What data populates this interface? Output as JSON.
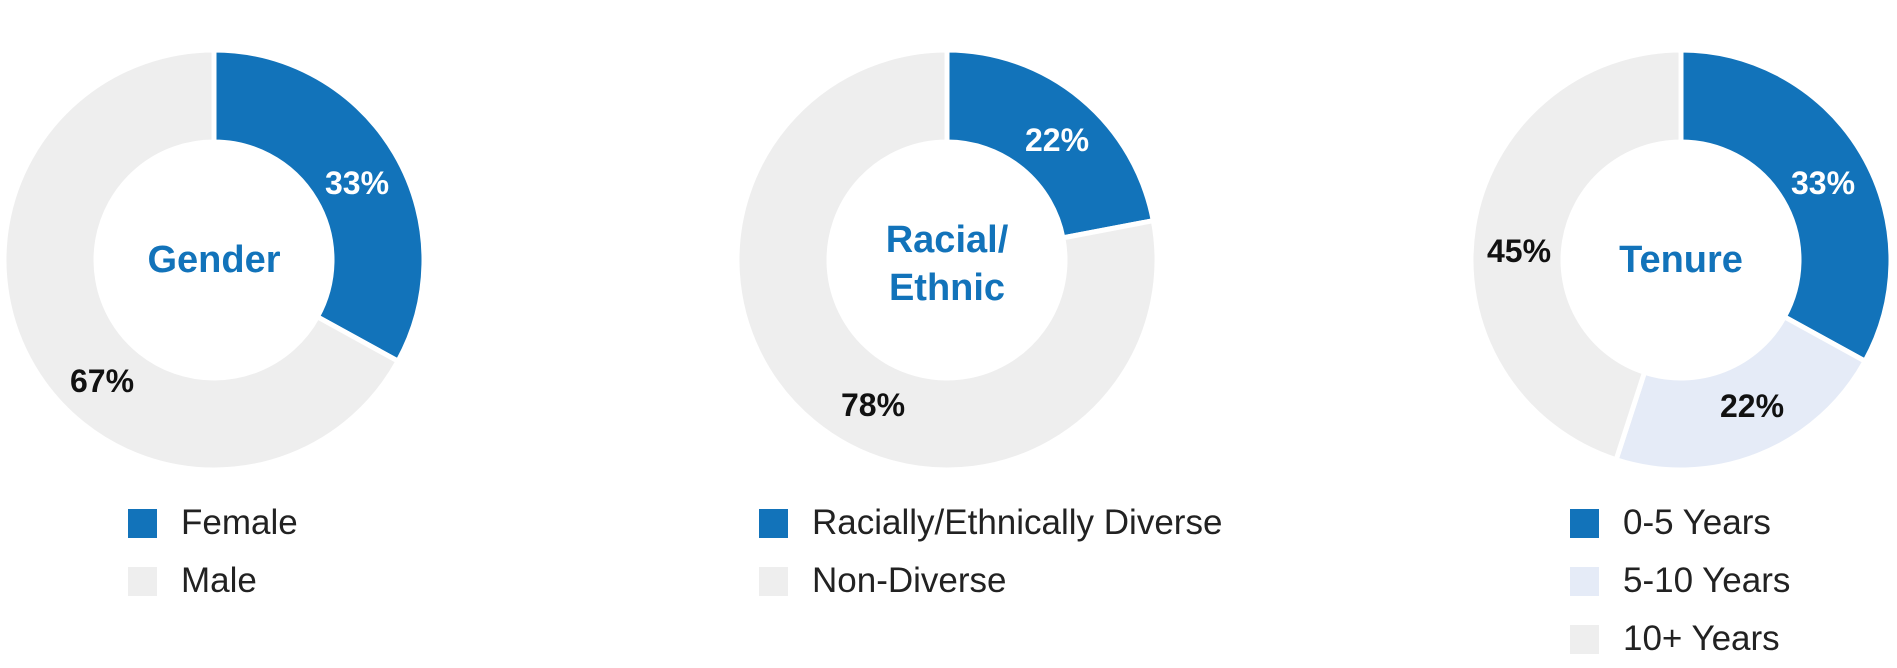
{
  "colors": {
    "primary": "#1273BA",
    "light_blue": "#E5EBF7",
    "gray": "#EEEEEE",
    "center_text": "#1273BA"
  },
  "chart_data": [
    {
      "type": "pie",
      "title": "",
      "center_label": [
        "Gender"
      ],
      "slices": [
        {
          "label": "Female",
          "value": 33,
          "display": "33%",
          "color": "#1273BA",
          "label_color": "#ffffff"
        },
        {
          "label": "Male",
          "value": 67,
          "display": "67%",
          "color": "#EEEEEE",
          "label_color": "#111111"
        }
      ],
      "legend": [
        {
          "label": "Female",
          "color": "#1273BA"
        },
        {
          "label": "Male",
          "color": "#EEEEEE"
        }
      ]
    },
    {
      "type": "pie",
      "title": "",
      "center_label": [
        "Racial/",
        "Ethnic"
      ],
      "slices": [
        {
          "label": "Racially/Ethnically Diverse",
          "value": 22,
          "display": "22%",
          "color": "#1273BA",
          "label_color": "#ffffff"
        },
        {
          "label": "Non-Diverse",
          "value": 78,
          "display": "78%",
          "color": "#EEEEEE",
          "label_color": "#111111"
        }
      ],
      "legend": [
        {
          "label": "Racially/Ethnically Diverse",
          "color": "#1273BA"
        },
        {
          "label": "Non-Diverse",
          "color": "#EEEEEE"
        }
      ]
    },
    {
      "type": "pie",
      "title": "",
      "center_label": [
        "Tenure"
      ],
      "slices": [
        {
          "label": "0-5 Years",
          "value": 33,
          "display": "33%",
          "color": "#1273BA",
          "label_color": "#ffffff"
        },
        {
          "label": "5-10 Years",
          "value": 22,
          "display": "22%",
          "color": "#E5EBF7",
          "label_color": "#111111"
        },
        {
          "label": "10+ Years",
          "value": 45,
          "display": "45%",
          "color": "#EEEEEE",
          "label_color": "#111111"
        }
      ],
      "legend": [
        {
          "label": "0-5 Years",
          "color": "#1273BA"
        },
        {
          "label": "5-10 Years",
          "color": "#E5EBF7"
        },
        {
          "label": "10+ Years",
          "color": "#EEEEEE"
        }
      ]
    }
  ]
}
